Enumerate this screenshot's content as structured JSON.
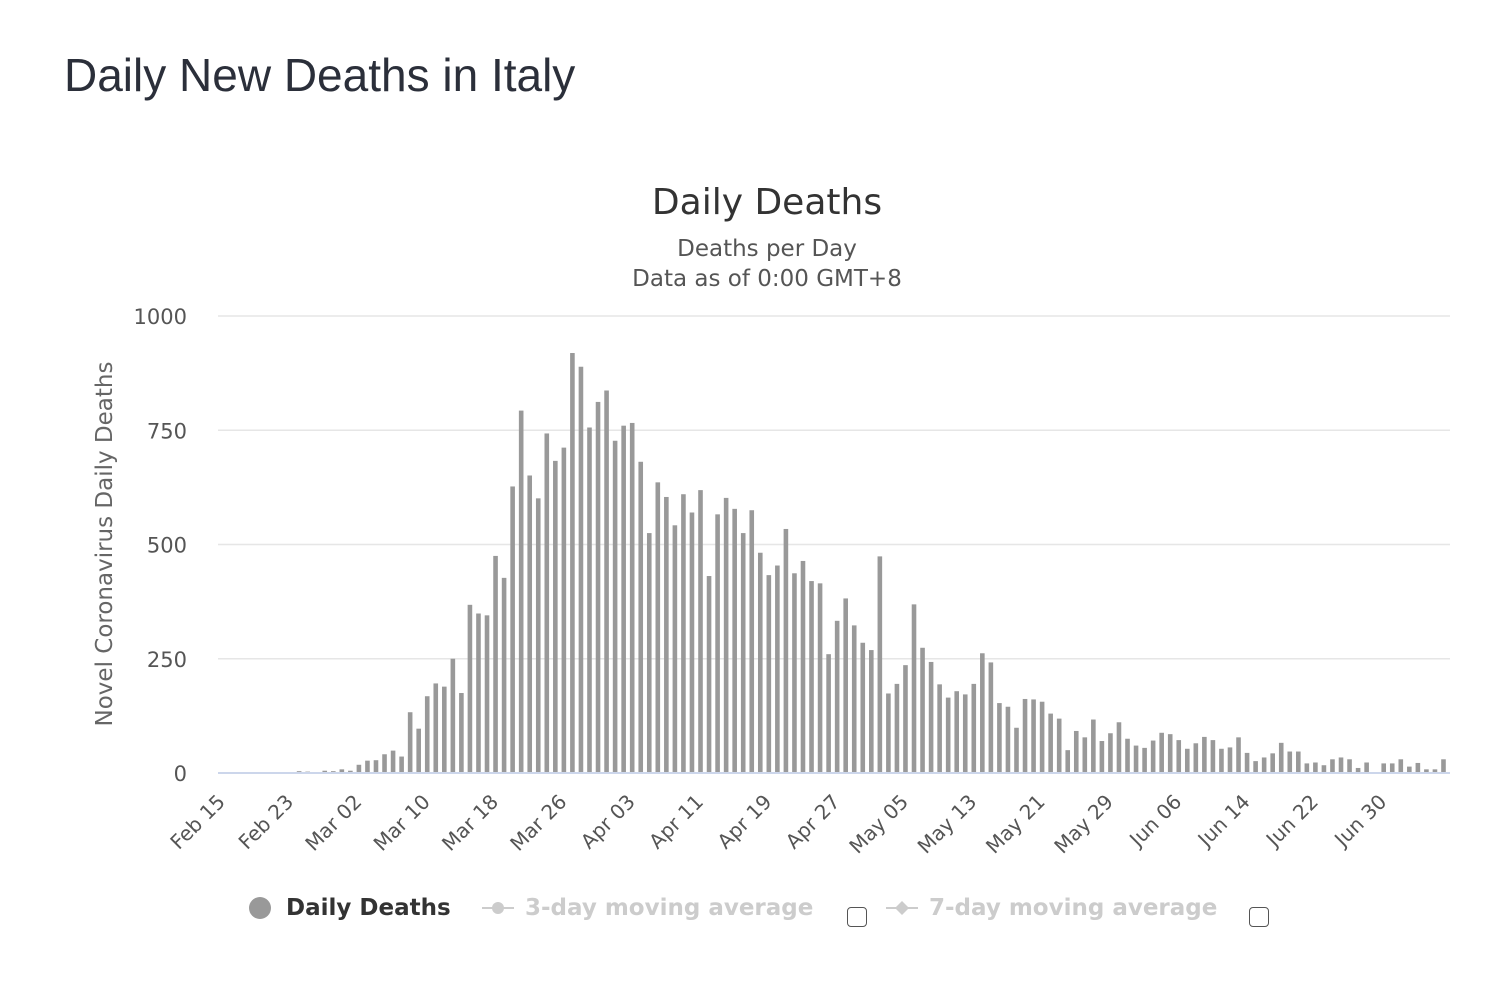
{
  "page": {
    "title": "Daily New Deaths in Italy"
  },
  "colors": {
    "bar": "#999999",
    "grid": "#e6e6e6",
    "axis_line": "#ccd6eb",
    "text": "#333333",
    "legend_inactive": "#cccccc"
  },
  "legend": {
    "items": [
      {
        "label": "Daily Deaths",
        "active": true,
        "icon": "circle-icon"
      },
      {
        "label": "3-day moving average",
        "active": false,
        "icon": "line-circle-icon"
      },
      {
        "label": "7-day moving average",
        "active": false,
        "icon": "line-diamond-icon"
      }
    ]
  },
  "chart_data": {
    "type": "bar",
    "title": "Daily Deaths",
    "subtitle": [
      "Deaths per Day",
      "Data as of 0:00 GMT+8"
    ],
    "ylabel": "Novel Coronavirus Daily Deaths",
    "xlabel": "",
    "ylim": [
      0,
      1000
    ],
    "yticks": [
      0,
      250,
      500,
      750,
      1000
    ],
    "grid": true,
    "legend_position": "bottom",
    "x_tick_labels": [
      "Feb 15",
      "Feb 23",
      "Mar 02",
      "Mar 10",
      "Mar 18",
      "Mar 26",
      "Apr 03",
      "Apr 11",
      "Apr 19",
      "Apr 27",
      "May 05",
      "May 13",
      "May 21",
      "May 29",
      "Jun 06",
      "Jun 14",
      "Jun 22",
      "Jun 30"
    ],
    "x_start": "Feb 15",
    "series": [
      {
        "name": "Daily Deaths",
        "values": [
          0,
          0,
          0,
          0,
          0,
          0,
          0,
          1,
          1,
          4,
          3,
          2,
          5,
          4,
          8,
          5,
          18,
          27,
          28,
          41,
          49,
          36,
          133,
          97,
          168,
          196,
          189,
          250,
          175,
          368,
          349,
          345,
          475,
          427,
          627,
          793,
          651,
          601,
          743,
          683,
          712,
          919,
          889,
          756,
          812,
          837,
          727,
          760,
          766,
          681,
          525,
          636,
          604,
          542,
          610,
          570,
          619,
          431,
          566,
          602,
          578,
          525,
          575,
          482,
          433,
          454,
          534,
          437,
          464,
          420,
          415,
          260,
          333,
          382,
          323,
          285,
          269,
          474,
          174,
          195,
          236,
          369,
          274,
          243,
          194,
          165,
          179,
          172,
          195,
          262,
          242,
          153,
          145,
          99,
          162,
          161,
          156,
          130,
          119,
          50,
          92,
          78,
          117,
          70,
          87,
          111,
          75,
          60,
          55,
          71,
          88,
          85,
          72,
          53,
          65,
          79,
          72,
          53,
          56,
          78,
          44,
          26,
          34,
          43,
          66,
          47,
          47,
          21,
          23,
          17,
          30,
          34,
          30,
          11,
          23,
          0,
          21,
          21,
          30,
          14,
          22,
          8,
          8,
          30
        ]
      }
    ]
  }
}
